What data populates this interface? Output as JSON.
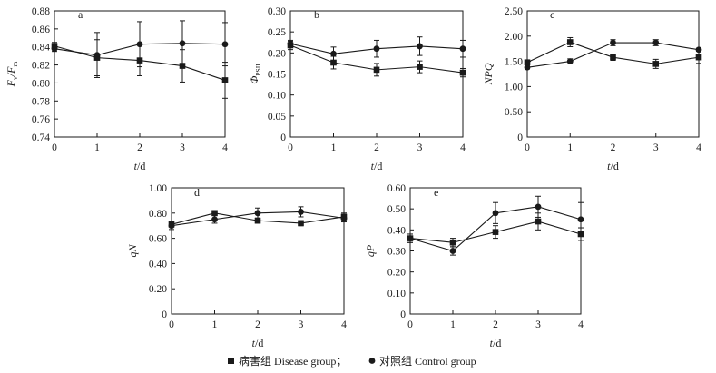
{
  "legend": {
    "disease_label": "病害组 Disease group；",
    "control_label": "对照组 Control group"
  },
  "chart_data": [
    {
      "type": "line",
      "panel": "a",
      "ylabel": "Fv/Fm",
      "ylabel_main": "F",
      "ylabel_sub1": "v",
      "ylabel_mid": "/F",
      "ylabel_sub2": "m",
      "xlabel_main": "t",
      "xlabel_unit": "/d",
      "x": [
        0,
        1,
        2,
        3,
        4
      ],
      "xlim": [
        0,
        4
      ],
      "ylim": [
        0.74,
        0.88
      ],
      "yticks": [
        0.74,
        0.76,
        0.78,
        0.8,
        0.82,
        0.84,
        0.86,
        0.88
      ],
      "ytick_labels": [
        "0.74",
        "0.76",
        "0.78",
        "0.80",
        "0.82",
        "0.84",
        "0.86",
        "0.88"
      ],
      "series": [
        {
          "name": "Disease group",
          "marker": "square",
          "values": [
            0.841,
            0.828,
            0.825,
            0.819,
            0.803
          ],
          "errors": [
            0.004,
            0.02,
            0.017,
            0.018,
            0.02
          ]
        },
        {
          "name": "Control group",
          "marker": "circle",
          "values": [
            0.838,
            0.831,
            0.843,
            0.844,
            0.843
          ],
          "errors": [
            0.003,
            0.025,
            0.025,
            0.025,
            0.024
          ]
        }
      ]
    },
    {
      "type": "line",
      "panel": "b",
      "ylabel": "ΦPSII",
      "ylabel_main": "Φ",
      "ylabel_sub1": "PSII",
      "ylabel_mid": "",
      "ylabel_sub2": "",
      "xlabel_main": "t",
      "xlabel_unit": "/d",
      "x": [
        0,
        1,
        2,
        3,
        4
      ],
      "xlim": [
        0,
        4
      ],
      "ylim": [
        0,
        0.3
      ],
      "yticks": [
        0,
        0.05,
        0.1,
        0.15,
        0.2,
        0.25,
        0.3
      ],
      "ytick_labels": [
        "0",
        "0.05",
        "0.10",
        "0.15",
        "0.20",
        "0.25",
        "0.30"
      ],
      "series": [
        {
          "name": "Disease group",
          "marker": "square",
          "values": [
            0.218,
            0.177,
            0.16,
            0.167,
            0.153
          ],
          "errors": [
            0.01,
            0.015,
            0.015,
            0.014,
            0.01
          ]
        },
        {
          "name": "Control group",
          "marker": "circle",
          "values": [
            0.222,
            0.198,
            0.21,
            0.216,
            0.21
          ],
          "errors": [
            0.008,
            0.016,
            0.02,
            0.022,
            0.02
          ]
        }
      ]
    },
    {
      "type": "line",
      "panel": "c",
      "ylabel": "NPQ",
      "ylabel_main": "NPQ",
      "ylabel_sub1": "",
      "ylabel_mid": "",
      "ylabel_sub2": "",
      "xlabel_main": "t",
      "xlabel_unit": "/d",
      "x": [
        0,
        1,
        2,
        3,
        4
      ],
      "xlim": [
        0,
        4
      ],
      "ylim": [
        0,
        2.5
      ],
      "yticks": [
        0,
        0.5,
        1.0,
        1.5,
        2.0,
        2.5
      ],
      "ytick_labels": [
        "0",
        "0.50",
        "1.00",
        "1.50",
        "2.00",
        "2.50"
      ],
      "series": [
        {
          "name": "Disease group",
          "marker": "square",
          "values": [
            1.48,
            1.88,
            1.58,
            1.45,
            1.58
          ],
          "errors": [
            0.04,
            0.09,
            0.06,
            0.09,
            0.12
          ]
        },
        {
          "name": "Control group",
          "marker": "circle",
          "values": [
            1.38,
            1.5,
            1.87,
            1.87,
            1.73
          ],
          "errors": [
            0.03,
            0.05,
            0.06,
            0.06,
            0.03
          ]
        }
      ]
    },
    {
      "type": "line",
      "panel": "d",
      "ylabel": "qN",
      "ylabel_main": "qN",
      "ylabel_sub1": "",
      "ylabel_mid": "",
      "ylabel_sub2": "",
      "xlabel_main": "t",
      "xlabel_unit": "/d",
      "x": [
        0,
        1,
        2,
        3,
        4
      ],
      "xlim": [
        0,
        4
      ],
      "ylim": [
        0,
        1.0
      ],
      "yticks": [
        0,
        0.2,
        0.4,
        0.6,
        0.8,
        1.0
      ],
      "ytick_labels": [
        "0",
        "0.20",
        "0.40",
        "0.60",
        "0.80",
        "1.00"
      ],
      "series": [
        {
          "name": "Disease group",
          "marker": "square",
          "values": [
            0.71,
            0.8,
            0.74,
            0.72,
            0.77
          ],
          "errors": [
            0.02,
            0.02,
            0.02,
            0.02,
            0.03
          ]
        },
        {
          "name": "Control group",
          "marker": "circle",
          "values": [
            0.7,
            0.75,
            0.8,
            0.81,
            0.76
          ],
          "errors": [
            0.03,
            0.03,
            0.04,
            0.04,
            0.03
          ]
        }
      ]
    },
    {
      "type": "line",
      "panel": "e",
      "ylabel": "qP",
      "ylabel_main": "qP",
      "ylabel_sub1": "",
      "ylabel_mid": "",
      "ylabel_sub2": "",
      "xlabel_main": "t",
      "xlabel_unit": "/d",
      "x": [
        0,
        1,
        2,
        3,
        4
      ],
      "xlim": [
        0,
        4
      ],
      "ylim": [
        0,
        0.6
      ],
      "yticks": [
        0,
        0.1,
        0.2,
        0.3,
        0.4,
        0.5,
        0.6
      ],
      "ytick_labels": [
        "0",
        "0.10",
        "0.20",
        "0.30",
        "0.40",
        "0.50",
        "0.60"
      ],
      "series": [
        {
          "name": "Disease group",
          "marker": "square",
          "values": [
            0.36,
            0.34,
            0.39,
            0.44,
            0.38
          ],
          "errors": [
            0.02,
            0.02,
            0.03,
            0.04,
            0.03
          ]
        },
        {
          "name": "Control group",
          "marker": "circle",
          "values": [
            0.36,
            0.3,
            0.48,
            0.51,
            0.45
          ],
          "errors": [
            0.02,
            0.02,
            0.05,
            0.05,
            0.08
          ]
        }
      ]
    }
  ]
}
